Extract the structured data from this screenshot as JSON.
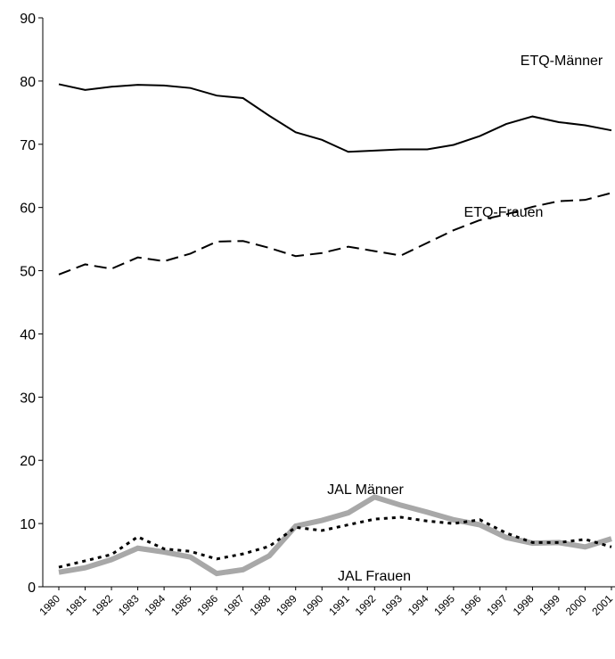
{
  "chart_data": {
    "type": "line",
    "categories": [
      "1980",
      "1981",
      "1982",
      "1983",
      "1984",
      "1985",
      "1986",
      "1987",
      "1988",
      "1989",
      "1990",
      "1991",
      "1992",
      "1993",
      "1994",
      "1995",
      "1996",
      "1997",
      "1998",
      "1999",
      "2000",
      "2001"
    ],
    "series": [
      {
        "name": "ETQ-Männer",
        "color": "#000000",
        "linestyle": "solid",
        "values": [
          79.5,
          78.6,
          79.1,
          79.4,
          79.3,
          78.9,
          77.7,
          77.3,
          74.5,
          71.9,
          70.7,
          68.8,
          69.0,
          69.2,
          69.2,
          69.9,
          71.3,
          73.2,
          74.4,
          73.5,
          73.0,
          72.2
        ]
      },
      {
        "name": "ETQ-Frauen",
        "color": "#000000",
        "linestyle": "dashed",
        "values": [
          49.4,
          51.0,
          50.3,
          52.1,
          51.5,
          52.7,
          54.6,
          54.7,
          53.6,
          52.3,
          52.8,
          53.8,
          53.1,
          52.4,
          54.4,
          56.4,
          58.0,
          58.9,
          60.1,
          61.0,
          61.2,
          62.3
        ]
      },
      {
        "name": "JAL Männer",
        "color": "#a8a8a8",
        "linestyle": "thick",
        "values": [
          2.3,
          3.0,
          4.3,
          6.1,
          5.5,
          4.7,
          2.1,
          2.7,
          4.9,
          9.6,
          10.5,
          11.7,
          14.2,
          12.9,
          11.8,
          10.6,
          9.8,
          7.8,
          6.9,
          7.0,
          6.3,
          7.6
        ]
      },
      {
        "name": "JAL Frauen",
        "color": "#000000",
        "linestyle": "dotted",
        "values": [
          3.1,
          4.1,
          5.1,
          7.9,
          6.0,
          5.6,
          4.4,
          5.2,
          6.4,
          9.4,
          8.9,
          9.8,
          10.7,
          11.0,
          10.4,
          10.0,
          10.6,
          8.5,
          7.0,
          7.0,
          7.5,
          6.3
        ]
      }
    ],
    "ylim": [
      0,
      90
    ],
    "yticks": [
      0,
      10,
      20,
      30,
      40,
      50,
      60,
      70,
      80,
      90
    ],
    "grid": false
  }
}
